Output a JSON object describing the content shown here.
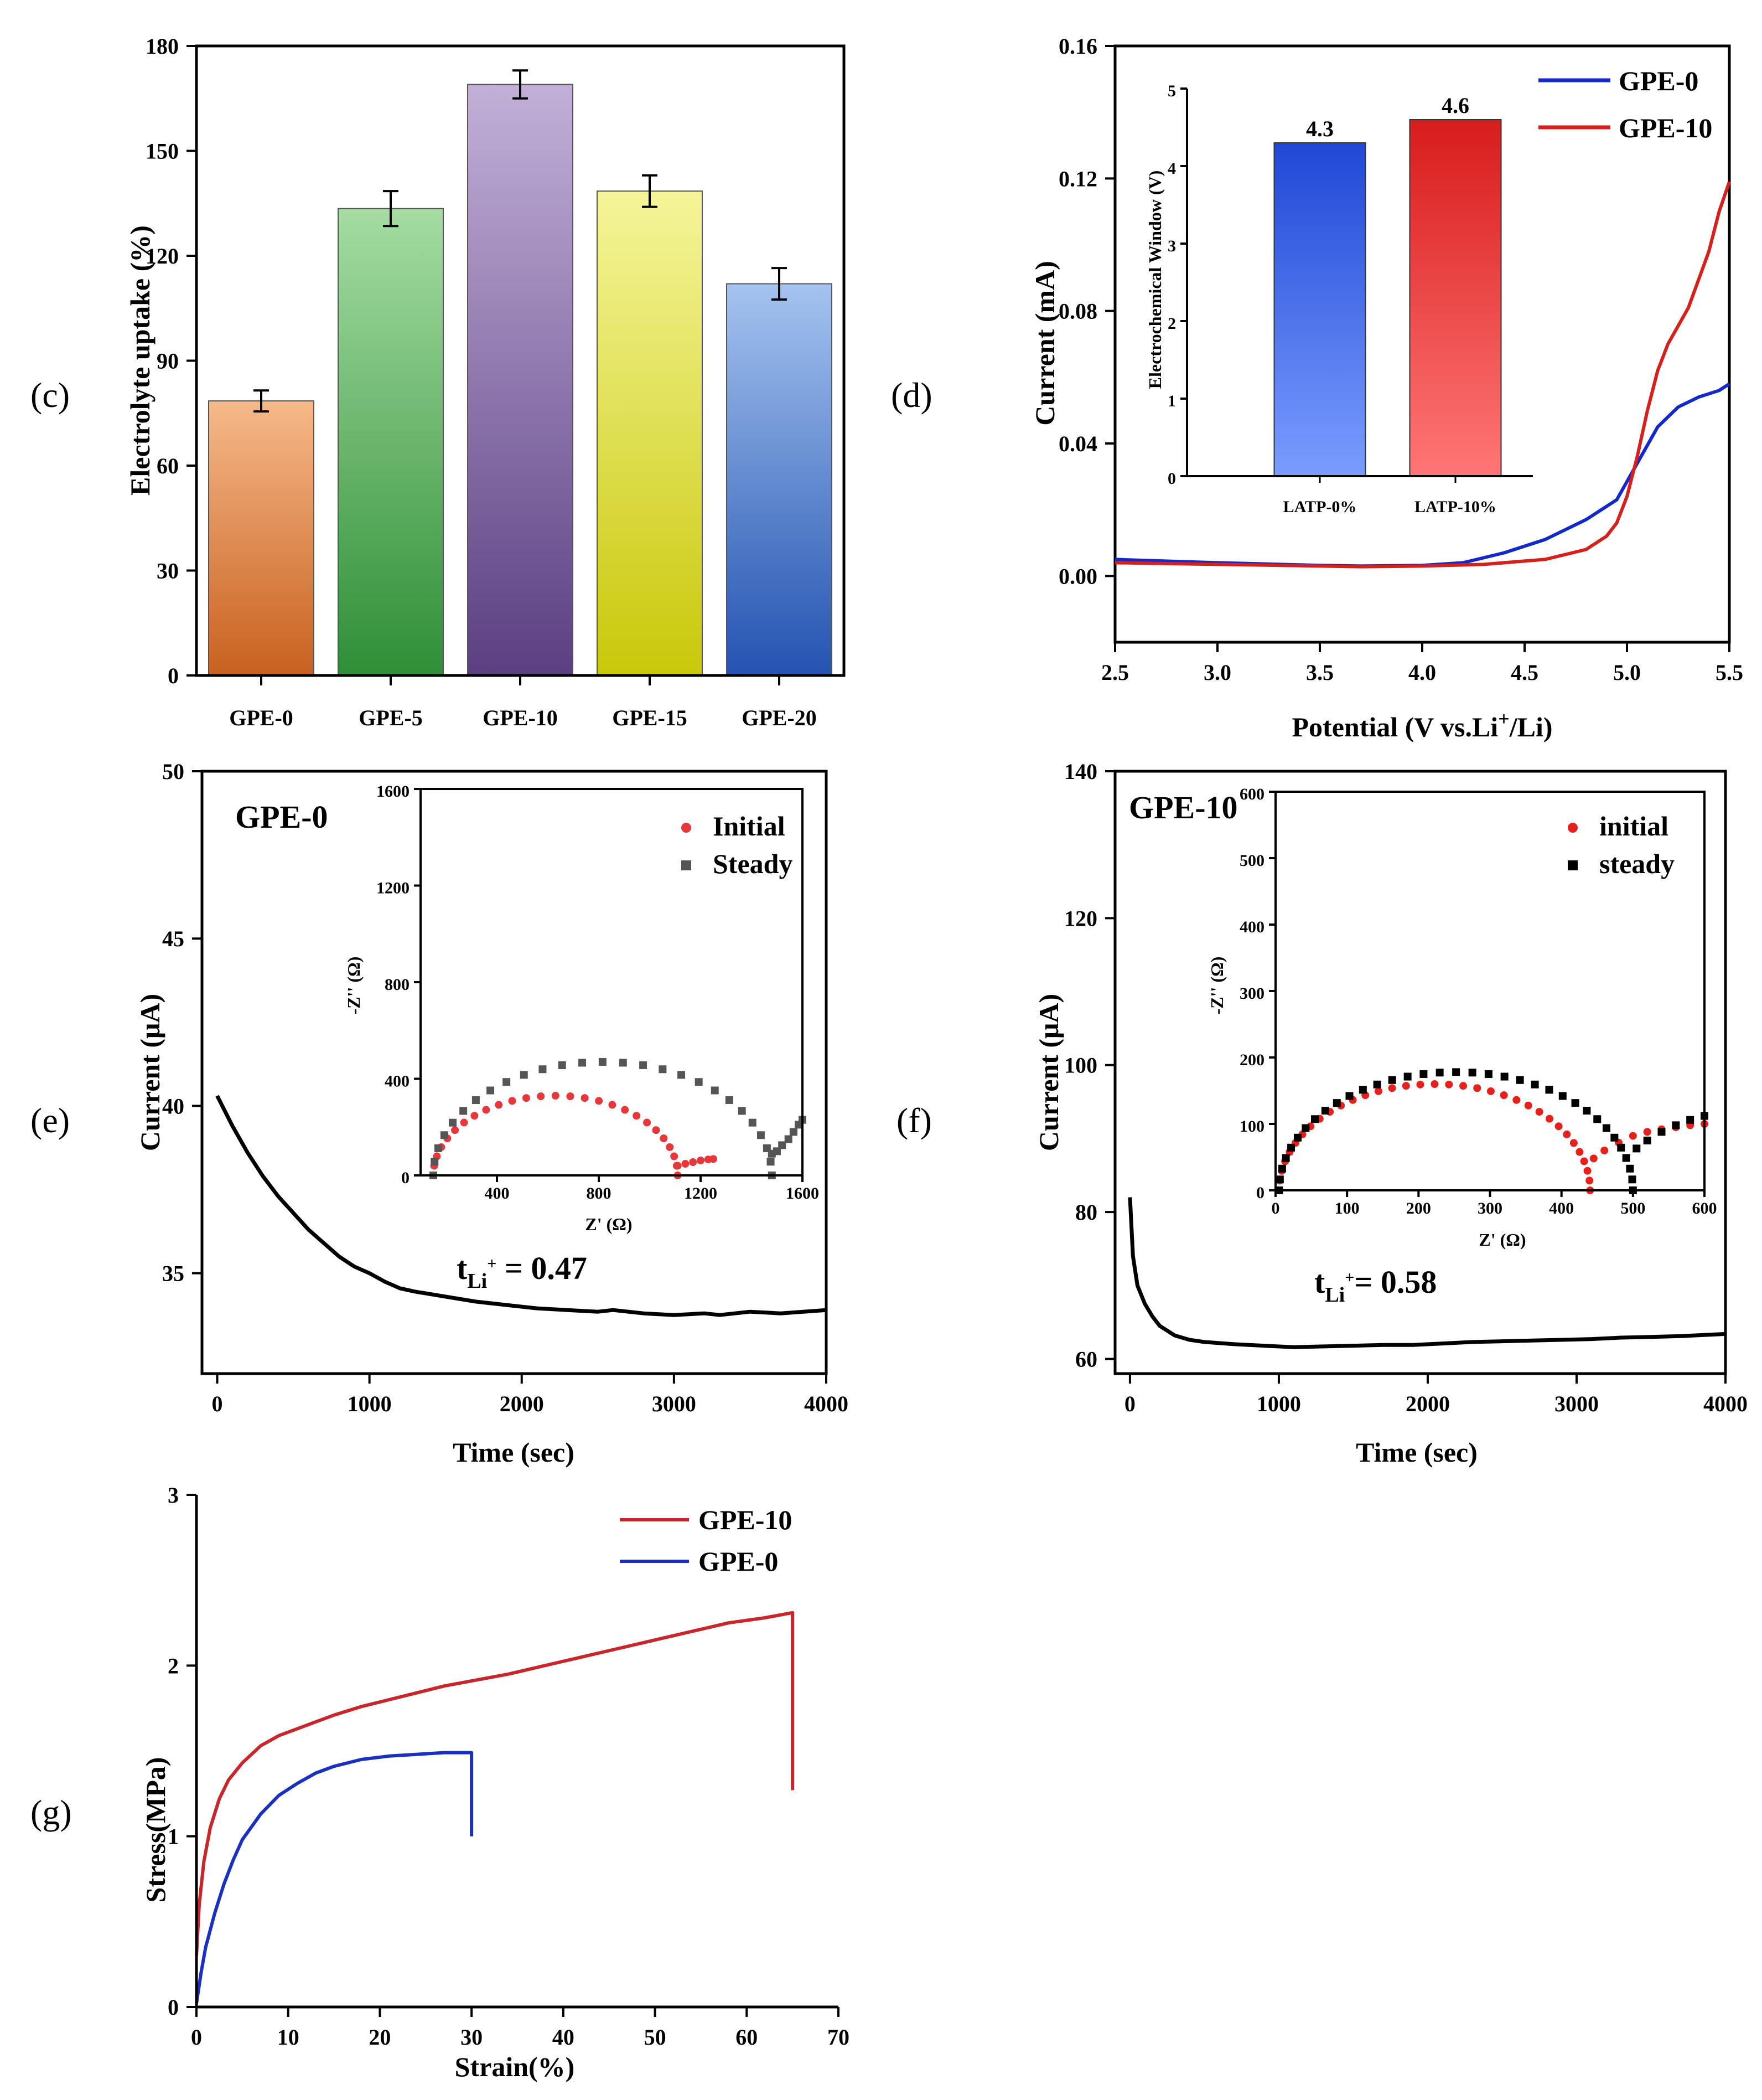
{
  "chart_data": [
    {
      "id": "c",
      "panel_label": "(c)",
      "type": "bar",
      "categories": [
        "GPE-0",
        "GPE-5",
        "GPE-10",
        "GPE-15",
        "GPE-20"
      ],
      "values": [
        78.5,
        133.5,
        169,
        138.5,
        112
      ],
      "errors": [
        3,
        5,
        4,
        4.5,
        4.5
      ],
      "colors": [
        [
          "#f6b98a",
          "#c8611f"
        ],
        [
          "#a5dca2",
          "#2f8f37"
        ],
        [
          "#c2b0d8",
          "#5b3f82"
        ],
        [
          "#f5f59a",
          "#c9c80b"
        ],
        [
          "#a4c3ef",
          "#2453b1"
        ]
      ],
      "xlabel": "",
      "ylabel": "Electrolyte uptake (%)",
      "ylim": [
        0,
        180
      ],
      "yticks": [
        "0",
        "30",
        "60",
        "90",
        "120",
        "150",
        "180"
      ]
    },
    {
      "id": "d",
      "panel_label": "(d)",
      "type": "line",
      "xlabel_parts": [
        "Potential (V vs.Li",
        "+",
        "/Li)"
      ],
      "ylabel": "Current (mA)",
      "xlim": [
        2.5,
        5.5
      ],
      "ylim": [
        -0.02,
        0.16
      ],
      "xticks": [
        "2.5",
        "3.0",
        "3.5",
        "4.0",
        "4.5",
        "5.0",
        "5.5"
      ],
      "yticks": [
        "0.00",
        "0.04",
        "0.08",
        "0.12",
        "0.16"
      ],
      "legend_position": "top-right",
      "series": [
        {
          "name": "GPE-0",
          "color": "#1328c8",
          "x": [
            2.5,
            3.0,
            3.5,
            3.7,
            4.0,
            4.2,
            4.4,
            4.6,
            4.8,
            4.95,
            5.05,
            5.15,
            5.25,
            5.35,
            5.45,
            5.5
          ],
          "y": [
            0.005,
            0.004,
            0.0032,
            0.003,
            0.0032,
            0.004,
            0.007,
            0.011,
            0.017,
            0.023,
            0.034,
            0.045,
            0.051,
            0.054,
            0.056,
            0.058
          ]
        },
        {
          "name": "GPE-10",
          "color": "#d6201c",
          "x": [
            2.5,
            3.0,
            3.5,
            3.7,
            4.0,
            4.3,
            4.6,
            4.8,
            4.9,
            4.95,
            5.0,
            5.05,
            5.1,
            5.15,
            5.2,
            5.3,
            5.4,
            5.45,
            5.5
          ],
          "y": [
            0.004,
            0.0035,
            0.003,
            0.0028,
            0.003,
            0.0035,
            0.005,
            0.008,
            0.012,
            0.016,
            0.024,
            0.036,
            0.05,
            0.062,
            0.07,
            0.081,
            0.098,
            0.11,
            0.119
          ]
        }
      ],
      "inset": {
        "type": "bar",
        "categories": [
          "LATP-0%",
          "LATP-10%"
        ],
        "values": [
          4.3,
          4.6
        ],
        "value_labels": [
          "4.3",
          "4.6"
        ],
        "colors": [
          [
            "#1f48d6",
            "#7a9cff"
          ],
          [
            "#d81c1c",
            "#ff7676"
          ]
        ],
        "ylabel": "Electrochemical Window (V)",
        "ylim": [
          0,
          5
        ],
        "yticks": [
          "0",
          "1",
          "2",
          "3",
          "4",
          "5"
        ]
      }
    },
    {
      "id": "e",
      "panel_label": "(e)",
      "type": "line",
      "title": "GPE-0",
      "annotation_parts": [
        "t",
        "Li",
        "+",
        " = 0.47"
      ],
      "xlabel": "Time (sec)",
      "ylabel": "Current (μA)",
      "xlim": [
        -100,
        4000
      ],
      "ylim": [
        32,
        50
      ],
      "xticks": [
        "0",
        "1000",
        "2000",
        "3000",
        "4000"
      ],
      "yticks": [
        "35",
        "40",
        "45",
        "50"
      ],
      "series": [
        {
          "name": "GPE-0",
          "color": "#000000",
          "x": [
            0,
            100,
            200,
            300,
            400,
            500,
            600,
            700,
            800,
            900,
            1000,
            1100,
            1200,
            1300,
            1500,
            1700,
            1900,
            2100,
            2300,
            2500,
            2600,
            2800,
            3000,
            3200,
            3300,
            3500,
            3700,
            4000
          ],
          "y": [
            40.3,
            39.4,
            38.6,
            37.9,
            37.3,
            36.8,
            36.3,
            35.9,
            35.5,
            35.2,
            35.0,
            34.75,
            34.55,
            34.45,
            34.3,
            34.15,
            34.05,
            33.95,
            33.9,
            33.85,
            33.9,
            33.8,
            33.75,
            33.8,
            33.75,
            33.85,
            33.8,
            33.9
          ]
        }
      ],
      "inset": {
        "type": "scatter",
        "xlabel": "Z' (Ω)",
        "ylabel": "-Z'' (Ω)",
        "xlim": [
          100,
          1600
        ],
        "ylim": [
          0,
          1600
        ],
        "xticks": [
          "400",
          "800",
          "1200",
          "1600"
        ],
        "yticks": [
          "0",
          "400",
          "800",
          "1200",
          "1600"
        ],
        "legend_position": "top-right",
        "series": [
          {
            "name": "Initial",
            "marker": "circle",
            "color": "#e8373a",
            "arc": {
              "x_start": 150,
              "x_end": 1110,
              "peak": 330
            },
            "tail": [
              [
                1110,
                40
              ],
              [
                1140,
                48
              ],
              [
                1170,
                55
              ],
              [
                1200,
                62
              ],
              [
                1230,
                66
              ],
              [
                1250,
                68
              ]
            ]
          },
          {
            "name": "Steady",
            "marker": "square",
            "color": "#555555",
            "arc": {
              "x_start": 150,
              "x_end": 1480,
              "peak": 470
            },
            "tail": [
              [
                1480,
                90
              ],
              [
                1500,
                100
              ],
              [
                1520,
                125
              ],
              [
                1545,
                150
              ],
              [
                1565,
                180
              ],
              [
                1585,
                210
              ],
              [
                1600,
                230
              ]
            ]
          }
        ]
      }
    },
    {
      "id": "f",
      "panel_label": "(f)",
      "type": "line",
      "title": "GPE-10",
      "annotation_parts": [
        "t",
        "Li",
        "+",
        "= 0.58"
      ],
      "xlabel": "Time (sec)",
      "ylabel": "Current (μA)",
      "xlim": [
        -100,
        4000
      ],
      "ylim": [
        58,
        140
      ],
      "xticks": [
        "0",
        "1000",
        "2000",
        "3000",
        "4000"
      ],
      "yticks": [
        "60",
        "80",
        "100",
        "120",
        "140"
      ],
      "series": [
        {
          "name": "GPE-10",
          "color": "#000000",
          "x": [
            0,
            20,
            50,
            100,
            150,
            200,
            300,
            400,
            500,
            700,
            900,
            1100,
            1300,
            1500,
            1700,
            1900,
            2100,
            2300,
            2500,
            2700,
            2900,
            3100,
            3300,
            3500,
            3700,
            4000
          ],
          "y": [
            82,
            74,
            70,
            67.5,
            65.8,
            64.5,
            63.2,
            62.6,
            62.3,
            62.0,
            61.8,
            61.6,
            61.7,
            61.8,
            61.9,
            61.9,
            62.1,
            62.3,
            62.4,
            62.5,
            62.6,
            62.7,
            62.9,
            63.0,
            63.1,
            63.4
          ]
        }
      ],
      "inset": {
        "type": "scatter",
        "xlabel": "Z' (Ω)",
        "ylabel": "-Z'' (Ω)",
        "xlim": [
          0,
          600
        ],
        "ylim": [
          0,
          600
        ],
        "xticks": [
          "0",
          "100",
          "200",
          "300",
          "400",
          "500",
          "600"
        ],
        "yticks": [
          "0",
          "100",
          "200",
          "300",
          "400",
          "500",
          "600"
        ],
        "legend_position": "top-right",
        "series": [
          {
            "name": "initial",
            "marker": "circle",
            "color": "#e8201c",
            "arc": {
              "x_start": 5,
              "x_end": 440,
              "peak": 160
            },
            "tail": [
              [
                445,
                48
              ],
              [
                460,
                60
              ],
              [
                480,
                72
              ],
              [
                500,
                82
              ],
              [
                520,
                88
              ],
              [
                540,
                92
              ],
              [
                560,
                95
              ],
              [
                580,
                98
              ],
              [
                600,
                100
              ]
            ]
          },
          {
            "name": "steady",
            "marker": "square",
            "color": "#000000",
            "arc": {
              "x_start": 5,
              "x_end": 500,
              "peak": 178
            },
            "tail": [
              [
                505,
                63
              ],
              [
                520,
                75
              ],
              [
                540,
                88
              ],
              [
                560,
                98
              ],
              [
                580,
                106
              ],
              [
                600,
                112
              ]
            ]
          }
        ]
      }
    },
    {
      "id": "g",
      "panel_label": "(g)",
      "type": "line",
      "xlabel": "Strain(%)",
      "ylabel": "Stress(MPa)",
      "xlim": [
        0,
        70
      ],
      "ylim": [
        0,
        3
      ],
      "xticks": [
        "0",
        "10",
        "20",
        "30",
        "40",
        "50",
        "60",
        "70"
      ],
      "yticks": [
        "0",
        "1",
        "2",
        "3"
      ],
      "legend_position": "top-right",
      "series": [
        {
          "name": "GPE-10",
          "color": "#c8262a",
          "x": [
            0,
            0.3,
            0.8,
            1.5,
            2.5,
            3.5,
            5,
            7,
            9,
            11,
            13,
            15,
            18,
            21,
            24,
            27,
            30,
            34,
            38,
            42,
            46,
            50,
            54,
            58,
            62,
            65,
            65,
            65
          ],
          "y": [
            0.3,
            0.6,
            0.85,
            1.05,
            1.22,
            1.33,
            1.43,
            1.53,
            1.59,
            1.63,
            1.67,
            1.71,
            1.76,
            1.8,
            1.84,
            1.88,
            1.91,
            1.95,
            2.0,
            2.05,
            2.1,
            2.15,
            2.2,
            2.25,
            2.28,
            2.31,
            1.8,
            1.27
          ]
        },
        {
          "name": "GPE-0",
          "color": "#1a30c0",
          "x": [
            0,
            0.5,
            1,
            2,
            3,
            4,
            5,
            7,
            9,
            11,
            13,
            15,
            18,
            21,
            24,
            27,
            29.5,
            30,
            30
          ],
          "y": [
            0.02,
            0.2,
            0.35,
            0.55,
            0.72,
            0.86,
            0.98,
            1.13,
            1.24,
            1.31,
            1.37,
            1.41,
            1.45,
            1.47,
            1.48,
            1.49,
            1.49,
            1.49,
            1.0
          ]
        }
      ]
    }
  ]
}
